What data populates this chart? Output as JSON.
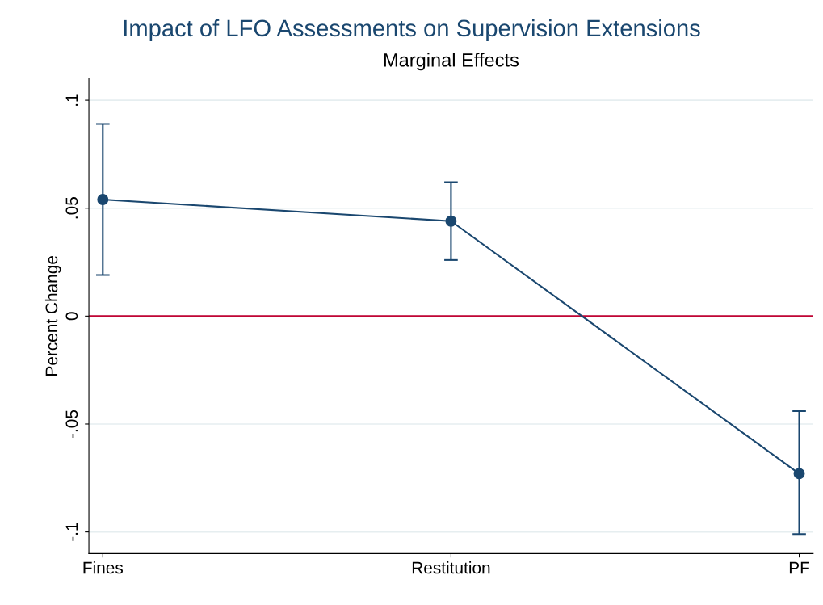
{
  "chart_data": {
    "type": "line",
    "title": "Impact of LFO Assessments on Supervision Extensions",
    "subtitle": "Marginal Effects",
    "ylabel": "Percent Change",
    "categories": [
      "Fines",
      "Restitution",
      "PF"
    ],
    "series": [
      {
        "color": "#1a476f",
        "values": [
          0.054,
          0.044,
          -0.073
        ],
        "errors": [
          [
            0.019,
            0.089
          ],
          [
            0.026,
            0.062
          ],
          [
            -0.101,
            -0.044
          ]
        ]
      }
    ],
    "ylim": [
      -0.11,
      0.11
    ],
    "yticks": [
      {
        "value": -0.1,
        "label": "-.1"
      },
      {
        "value": -0.05,
        "label": "-.05"
      },
      0,
      {
        "value": 0.05,
        "label": ".05"
      },
      {
        "value": 0.1,
        "label": ".1"
      }
    ],
    "ref_lines": [
      {
        "axis": "y",
        "value": 0,
        "color": "#c10534"
      }
    ],
    "grid": "y",
    "marker": "circle",
    "line_style": "solid",
    "legend": false
  }
}
